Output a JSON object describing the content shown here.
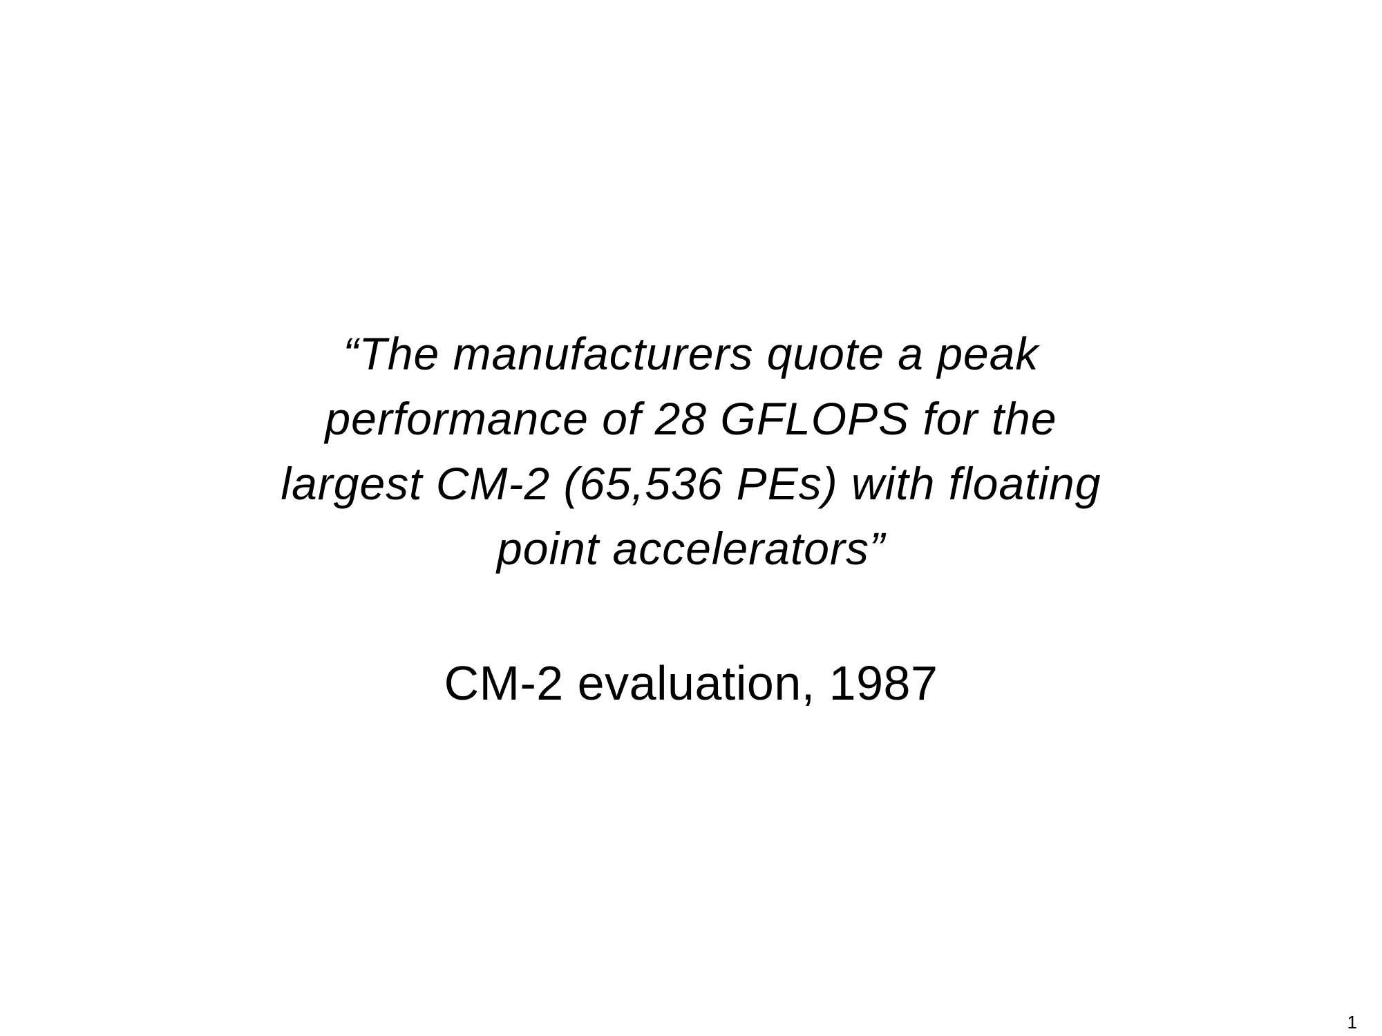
{
  "slide": {
    "quote_lines": [
      "“The manufacturers quote a peak",
      "performance of 28 GFLOPS for the",
      "largest CM-2 (65,536 PEs) with floating",
      "point accelerators”"
    ],
    "attribution": "CM-2 evaluation, 1987",
    "page_number": "1"
  }
}
